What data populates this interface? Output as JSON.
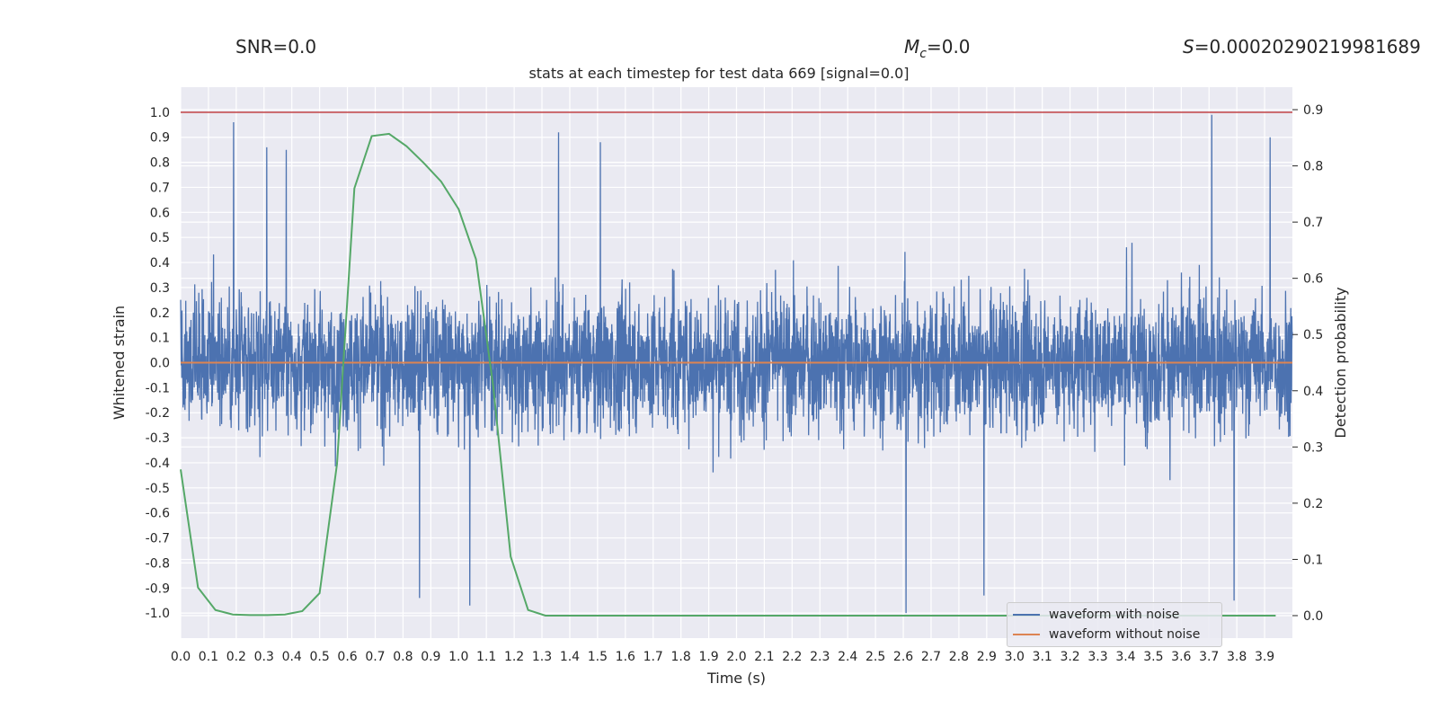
{
  "header": {
    "snr": "SNR=0.0",
    "mc_symbol": "M",
    "mc_sub": "c",
    "mc_value": "=0.0",
    "s_symbol": "S",
    "s_value": "=0.00020290219981689"
  },
  "legend": {
    "items": [
      {
        "label": "waveform with noise",
        "color": "#4c72b0"
      },
      {
        "label": "waveform without noise",
        "color": "#dd8452"
      }
    ]
  },
  "colors": {
    "axes_bg": "#eaeaf2",
    "grid": "#ffffff",
    "noise": "#4c72b0",
    "clean": "#dd8452",
    "probability": "#55a868",
    "threshold": "#c44e52"
  },
  "chart_data": {
    "type": "line",
    "title": "stats at each timestep for test data 669 [signal=0.0]",
    "xlabel": "Time (s)",
    "ylabel": "Whitened strain",
    "y2label": "Detection probability",
    "xlim": [
      0.0,
      4.0
    ],
    "ylim": [
      -1.1,
      1.1
    ],
    "y2lim": [
      -0.04,
      0.94
    ],
    "x_ticks": [
      "0.0",
      "0.1",
      "0.2",
      "0.3",
      "0.4",
      "0.5",
      "0.6",
      "0.7",
      "0.8",
      "0.9",
      "1.0",
      "1.1",
      "1.2",
      "1.3",
      "1.4",
      "1.5",
      "1.6",
      "1.7",
      "1.8",
      "1.9",
      "2.0",
      "2.1",
      "2.2",
      "2.3",
      "2.4",
      "2.5",
      "2.6",
      "2.7",
      "2.8",
      "2.9",
      "3.0",
      "3.1",
      "3.2",
      "3.3",
      "3.4",
      "3.5",
      "3.6",
      "3.7",
      "3.8",
      "3.9"
    ],
    "y_ticks": [
      "1.0",
      "0.9",
      "0.8",
      "0.7",
      "0.6",
      "0.5",
      "0.4",
      "0.3",
      "0.2",
      "0.1",
      "0.0",
      "-0.1",
      "-0.2",
      "-0.3",
      "-0.4",
      "-0.5",
      "-0.6",
      "-0.7",
      "-0.8",
      "-0.9",
      "-1.0"
    ],
    "y2_ticks": [
      "0.9",
      "0.8",
      "0.7",
      "0.6",
      "0.5",
      "0.4",
      "0.3",
      "0.2",
      "0.1",
      "0.0"
    ],
    "series": [
      {
        "name": "waveform with noise",
        "axis": "left",
        "kind": "dense_noise",
        "x_range": [
          0.0,
          4.0
        ],
        "amplitude_range": [
          -1.0,
          1.0
        ],
        "peaks": [
          {
            "x": 0.19,
            "y": 0.96
          },
          {
            "x": 0.31,
            "y": 0.86
          },
          {
            "x": 0.38,
            "y": 0.85
          },
          {
            "x": 1.36,
            "y": 0.92
          },
          {
            "x": 1.51,
            "y": 0.88
          },
          {
            "x": 3.71,
            "y": 0.99
          },
          {
            "x": 3.92,
            "y": 0.9
          },
          {
            "x": 2.61,
            "y": -1.0
          },
          {
            "x": 1.04,
            "y": -0.97
          },
          {
            "x": 0.86,
            "y": -0.94
          },
          {
            "x": 2.89,
            "y": -0.93
          },
          {
            "x": 3.79,
            "y": -0.95
          }
        ]
      },
      {
        "name": "waveform without noise",
        "axis": "left",
        "x": [
          0.0,
          4.0
        ],
        "y": [
          0.0,
          0.0
        ]
      },
      {
        "name": "",
        "axis": "right",
        "x": [
          0.0,
          0.0625,
          0.125,
          0.1875,
          0.25,
          0.3125,
          0.375,
          0.4375,
          0.5,
          0.5625,
          0.625,
          0.6875,
          0.75,
          0.8125,
          0.875,
          0.9375,
          1.0,
          1.0625,
          1.125,
          1.1875,
          1.25,
          1.3125,
          1.375,
          1.4375,
          1.5,
          2.0,
          2.5,
          3.0,
          3.5,
          3.94
        ],
        "y": [
          0.26,
          0.05,
          0.01,
          0.002,
          0.001,
          0.001,
          0.002,
          0.008,
          0.04,
          0.27,
          0.76,
          0.853,
          0.857,
          0.835,
          0.805,
          0.772,
          0.723,
          0.634,
          0.406,
          0.105,
          0.01,
          0.0,
          0.0,
          0.0,
          0.0,
          0.0,
          0.0,
          0.0,
          0.0,
          0.0
        ]
      },
      {
        "name": "",
        "axis": "left",
        "x": [
          0.0,
          4.0
        ],
        "y": [
          1.0,
          1.0
        ]
      }
    ],
    "grid": true,
    "legend_position": "lower-right"
  }
}
